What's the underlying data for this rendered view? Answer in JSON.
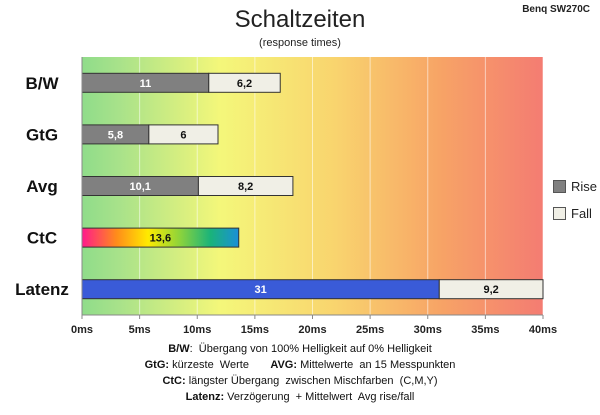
{
  "header": {
    "title": "Schaltzeiten",
    "subtitle": "(response times)",
    "brand": "Benq SW270C"
  },
  "legend": {
    "rise_label": "Rise",
    "fall_label": "Fall",
    "rise_color": "#808080",
    "fall_color": "#f0efe6"
  },
  "notes": [
    {
      "k1": "B/W",
      "t1": ":  Übergang von 100% Helligkeit auf 0% Helligkeit",
      "k2": "",
      "t2": ""
    },
    {
      "k1": "GtG:",
      "t1": " kürzeste  Werte       ",
      "k2": "AVG:",
      "t2": " Mittelwerte  an 15 Messpunkten"
    },
    {
      "k1": "CtC:",
      "t1": " längster Übergang  zwischen Mischfarben  (C,M,Y)",
      "k2": "",
      "t2": ""
    },
    {
      "k1": "Latenz:",
      "t1": " Verzögerung  + Mittelwert  Avg rise/fall",
      "k2": "",
      "t2": ""
    }
  ],
  "chart_data": {
    "type": "bar",
    "orientation": "horizontal",
    "stacked": true,
    "categories": [
      "B/W",
      "GtG",
      "Avg",
      "CtC",
      "Latenz"
    ],
    "series": [
      {
        "name": "Rise",
        "values": [
          11,
          5.8,
          10.1,
          13.6,
          31
        ],
        "labels": [
          "11",
          "5,8",
          "10,1",
          "13,6",
          "31"
        ]
      },
      {
        "name": "Fall",
        "values": [
          6.2,
          6,
          8.2,
          null,
          9.2
        ],
        "labels": [
          "6,2",
          "6",
          "8,2",
          "",
          "9,2"
        ]
      }
    ],
    "xlim": [
      0,
      40
    ],
    "xticks": [
      0,
      5,
      10,
      15,
      20,
      25,
      30,
      35,
      40
    ],
    "xtick_labels": [
      "0ms",
      "5ms",
      "10ms",
      "15ms",
      "20ms",
      "25ms",
      "30ms",
      "35ms",
      "40ms"
    ],
    "background": "gradient green-yellow-red",
    "special_colors": {
      "ctc_gradient": true,
      "latenz_rise": "#3a5bd8"
    }
  }
}
